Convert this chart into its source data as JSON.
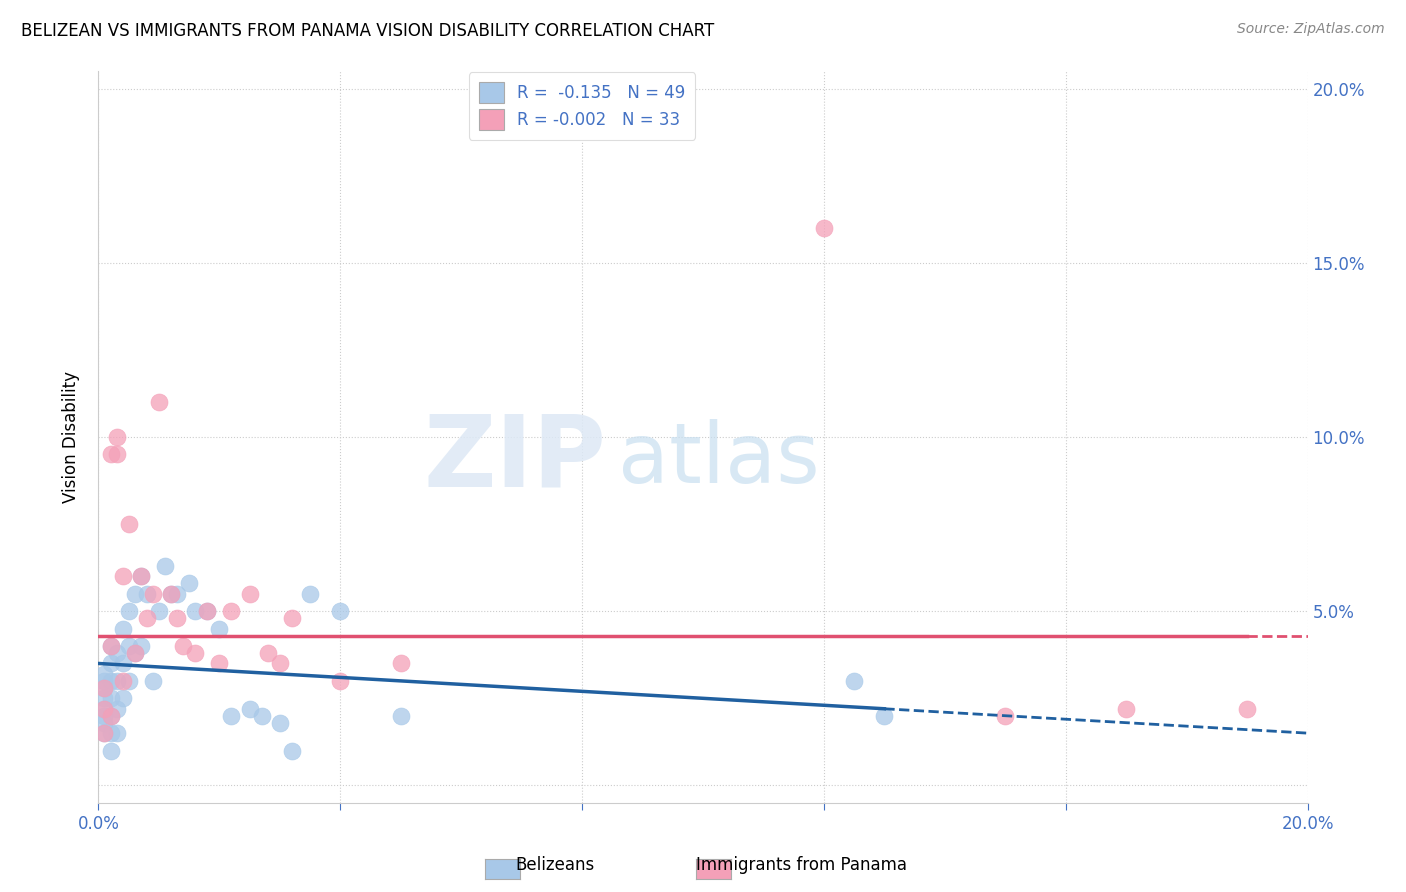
{
  "title": "BELIZEAN VS IMMIGRANTS FROM PANAMA VISION DISABILITY CORRELATION CHART",
  "source": "Source: ZipAtlas.com",
  "ylabel": "Vision Disability",
  "xlim": [
    0,
    0.2
  ],
  "ylim": [
    -0.005,
    0.205
  ],
  "blue_R": -0.135,
  "blue_N": 49,
  "pink_R": -0.002,
  "pink_N": 33,
  "blue_color": "#a8c8e8",
  "pink_color": "#f4a0b8",
  "blue_line_color": "#2060a0",
  "pink_line_color": "#e05070",
  "watermark_zip": "ZIP",
  "watermark_atlas": "atlas",
  "blue_trend_start": 0.035,
  "blue_trend_end": 0.015,
  "pink_trend_y": 0.043,
  "blue_x": [
    0.001,
    0.001,
    0.001,
    0.001,
    0.001,
    0.001,
    0.001,
    0.001,
    0.002,
    0.002,
    0.002,
    0.002,
    0.002,
    0.002,
    0.002,
    0.003,
    0.003,
    0.003,
    0.003,
    0.004,
    0.004,
    0.004,
    0.005,
    0.005,
    0.005,
    0.006,
    0.006,
    0.007,
    0.007,
    0.008,
    0.009,
    0.01,
    0.011,
    0.012,
    0.013,
    0.015,
    0.016,
    0.018,
    0.02,
    0.022,
    0.025,
    0.027,
    0.03,
    0.032,
    0.035,
    0.04,
    0.05,
    0.125,
    0.13
  ],
  "blue_y": [
    0.02,
    0.025,
    0.03,
    0.032,
    0.028,
    0.022,
    0.018,
    0.015,
    0.04,
    0.035,
    0.03,
    0.025,
    0.02,
    0.015,
    0.01,
    0.038,
    0.03,
    0.022,
    0.015,
    0.045,
    0.035,
    0.025,
    0.05,
    0.04,
    0.03,
    0.055,
    0.038,
    0.06,
    0.04,
    0.055,
    0.03,
    0.05,
    0.063,
    0.055,
    0.055,
    0.058,
    0.05,
    0.05,
    0.045,
    0.02,
    0.022,
    0.02,
    0.018,
    0.01,
    0.055,
    0.05,
    0.02,
    0.03,
    0.02
  ],
  "pink_x": [
    0.001,
    0.001,
    0.001,
    0.002,
    0.002,
    0.002,
    0.003,
    0.003,
    0.004,
    0.004,
    0.005,
    0.006,
    0.007,
    0.008,
    0.009,
    0.01,
    0.012,
    0.013,
    0.014,
    0.016,
    0.018,
    0.02,
    0.022,
    0.025,
    0.028,
    0.03,
    0.032,
    0.04,
    0.05,
    0.12,
    0.15,
    0.17,
    0.19
  ],
  "pink_y": [
    0.028,
    0.022,
    0.015,
    0.095,
    0.04,
    0.02,
    0.1,
    0.095,
    0.06,
    0.03,
    0.075,
    0.038,
    0.06,
    0.048,
    0.055,
    0.11,
    0.055,
    0.048,
    0.04,
    0.038,
    0.05,
    0.035,
    0.05,
    0.055,
    0.038,
    0.035,
    0.048,
    0.03,
    0.035,
    0.16,
    0.02,
    0.022,
    0.022
  ]
}
